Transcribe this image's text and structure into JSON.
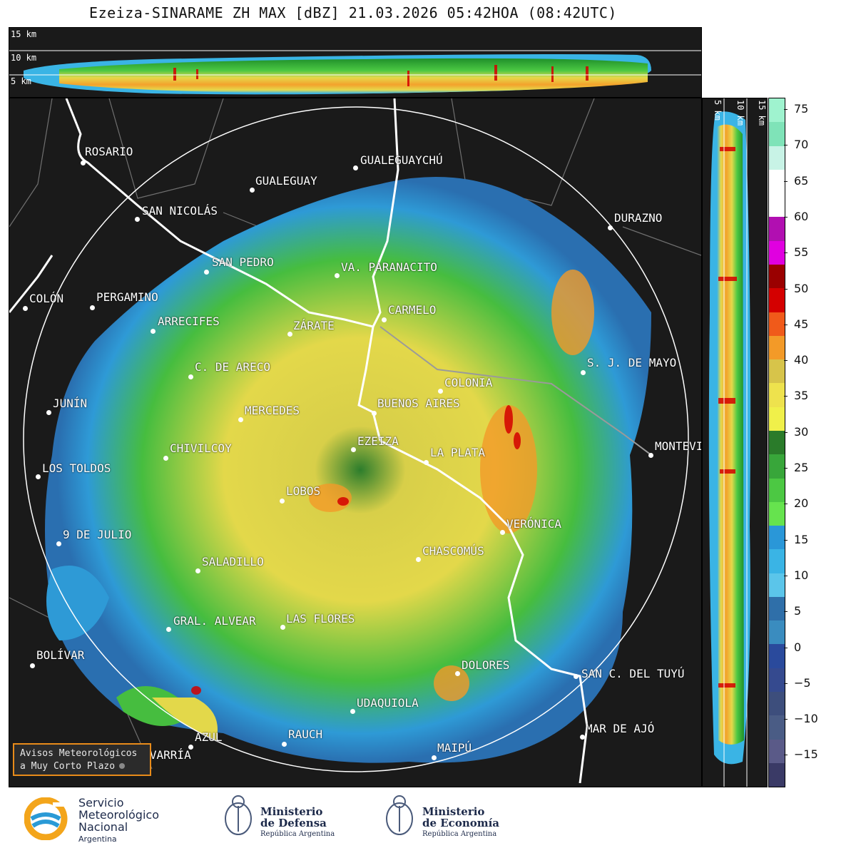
{
  "title": "Ezeiza-SINARAME ZH MAX [dBZ] 21.03.2026 05:42HOA (08:42UTC)",
  "top_panel": {
    "labels": [
      "15 km",
      "10 km",
      "5 km"
    ]
  },
  "side_panel": {
    "labels": [
      "5 km",
      "10 km",
      "15 km"
    ]
  },
  "colorbar": {
    "ticks": [
      "75",
      "70",
      "65",
      "60",
      "55",
      "50",
      "45",
      "40",
      "35",
      "30",
      "25",
      "20",
      "15",
      "10",
      "5",
      "0",
      "−5",
      "−10",
      "−15"
    ],
    "colors": [
      "#9ff3cf",
      "#7fe3b8",
      "#c8f3e6",
      "#ffffff",
      "#ffffff",
      "#b10fb1",
      "#e000e0",
      "#9a0000",
      "#d40000",
      "#f05a1a",
      "#f39a28",
      "#d7c44a",
      "#eee24d",
      "#f0f04a",
      "#2a7b2a",
      "#38a63a",
      "#4cc843",
      "#66e34e",
      "#2a97d8",
      "#3ab4e5",
      "#5bc5ea",
      "#2f6fa9",
      "#3a8cbf",
      "#2a4a9c",
      "#354a8f",
      "#3d4e7c",
      "#4a5c85",
      "#5a5a88",
      "#3a3a66"
    ]
  },
  "cities": [
    {
      "name": "ROSARIO"
    },
    {
      "name": "GUALEGUAYCHÚ"
    },
    {
      "name": "GUALEGUAY"
    },
    {
      "name": "SAN NICOLÁS"
    },
    {
      "name": "DURAZNO"
    },
    {
      "name": "SAN PEDRO"
    },
    {
      "name": "VA. PARANACITO"
    },
    {
      "name": "COLÓN"
    },
    {
      "name": "PERGAMINO"
    },
    {
      "name": "CARMELO"
    },
    {
      "name": "ARRECIFES"
    },
    {
      "name": "ZÁRATE"
    },
    {
      "name": "S. J. DE MAYO"
    },
    {
      "name": "C. DE ARECO"
    },
    {
      "name": "COLONIA"
    },
    {
      "name": "JUNÍN"
    },
    {
      "name": "MERCEDES"
    },
    {
      "name": "BUENOS AIRES"
    },
    {
      "name": "EZEIZA"
    },
    {
      "name": "CHIVILCOY"
    },
    {
      "name": "LA PLATA"
    },
    {
      "name": "MONTEVIDEO"
    },
    {
      "name": "LOS TOLDOS"
    },
    {
      "name": "LOBOS"
    },
    {
      "name": "VERÓNICA"
    },
    {
      "name": "9 DE JULIO"
    },
    {
      "name": "CHASCOMÚS"
    },
    {
      "name": "SALADILLO"
    },
    {
      "name": "GRAL. ALVEAR"
    },
    {
      "name": "LAS FLORES"
    },
    {
      "name": "BOLÍVAR"
    },
    {
      "name": "DOLORES"
    },
    {
      "name": "SAN C. DEL TUYÚ"
    },
    {
      "name": "UDAQUIOLA"
    },
    {
      "name": "MAR DE AJÓ"
    },
    {
      "name": "AZUL"
    },
    {
      "name": "OLAVARRÍA"
    },
    {
      "name": "RAUCH"
    },
    {
      "name": "MAIPÚ"
    }
  ],
  "alert_box": {
    "line1": "Avisos Meteorológicos",
    "line2": "a Muy Corto Plazo"
  },
  "logos": {
    "smn": {
      "line1": "Servicio",
      "line2": "Meteorológico",
      "line3": "Nacional",
      "line4": "Argentina"
    },
    "defensa": {
      "line1": "Ministerio",
      "line2": "de Defensa",
      "line3": "República Argentina"
    },
    "economia": {
      "line1": "Ministerio",
      "line2": "de Economía",
      "line3": "República Argentina"
    }
  }
}
